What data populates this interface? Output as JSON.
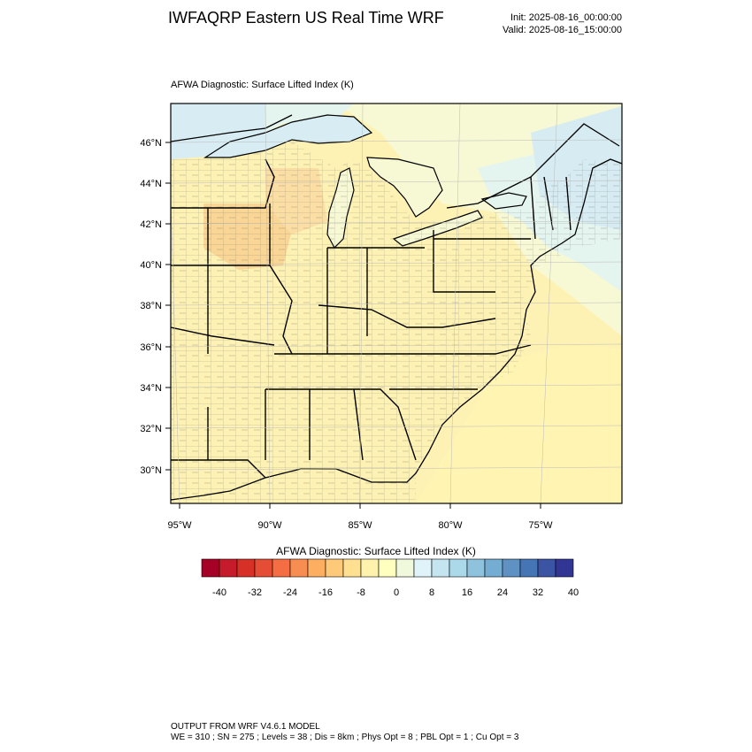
{
  "header": {
    "title": "IWFAQRP Eastern US Real Time WRF",
    "init": "Init: 2025-08-16_00:00:00",
    "valid": "Valid: 2025-08-16_15:00:00"
  },
  "map": {
    "subtitle": "AFWA Diagnostic: Surface Lifted Index   (K)",
    "lat_labels": [
      "46°N",
      "44°N",
      "42°N",
      "40°N",
      "38°N",
      "36°N",
      "34°N",
      "32°N",
      "30°N"
    ],
    "lon_labels": [
      "95°W",
      "90°W",
      "85°W",
      "80°W",
      "75°W"
    ],
    "colors": {
      "background_land": "#fdf2b3",
      "ocean_south": "#fff3b0",
      "neutral_north": "#f7fad6",
      "weak_stable": "#e3f3ee",
      "stable": "#d6ecf2",
      "unstable_region": "#fad99a",
      "boundaries": "#000000"
    }
  },
  "colorbar": {
    "title": "AFWA Diagnostic: Surface Lifted Index  (K)",
    "colors": [
      "#a50026",
      "#c51b2a",
      "#d73027",
      "#e54e35",
      "#f46d43",
      "#f88d52",
      "#fdae61",
      "#fec978",
      "#fee090",
      "#fff2ac",
      "#ffffbf",
      "#f0f9dc",
      "#e0f3f8",
      "#c4e5f0",
      "#abd9e9",
      "#8fc3dd",
      "#74add1",
      "#5f91c2",
      "#4575b4",
      "#3b54a4",
      "#313695"
    ],
    "tick_labels": [
      "-40",
      "-32",
      "-24",
      "-16",
      "-8",
      "0",
      "8",
      "16",
      "24",
      "32",
      "40"
    ]
  },
  "footer": {
    "line1": "OUTPUT FROM WRF V4.6.1 MODEL",
    "line2": "WE = 310 ; SN = 275 ; Levels = 38 ; Dis = 8km ; Phys Opt = 8 ; PBL Opt = 1 ; Cu Opt = 3"
  }
}
